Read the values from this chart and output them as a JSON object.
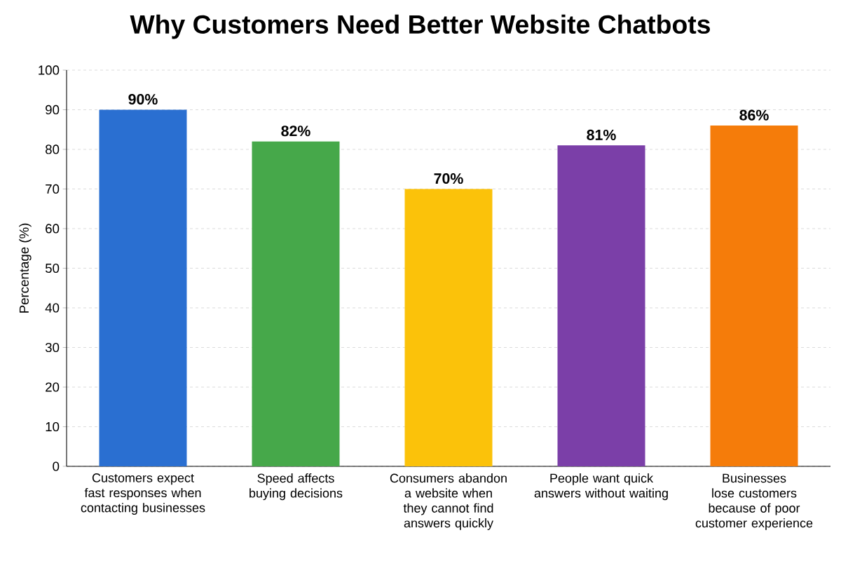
{
  "chart_data": {
    "type": "bar",
    "title": "Why Customers Need Better Website Chatbots",
    "ylabel": "Percentage (%)",
    "categories": [
      "Customers expect fast responses when contacting businesses",
      "Speed affects buying decisions",
      "Consumers abandon a website when they cannot find answers quickly",
      "People want quick answers without waiting",
      "Businesses lose customers because of poor customer experience"
    ],
    "values": [
      90,
      82,
      70,
      81,
      86
    ],
    "colors": [
      "#2a6fd1",
      "#46a84a",
      "#fbc20a",
      "#7b3fa8",
      "#f57c0a"
    ],
    "value_labels": [
      "90%",
      "82%",
      "70%",
      "81%",
      "86%"
    ],
    "ylim": [
      0,
      100
    ],
    "yticks": [
      0,
      10,
      20,
      30,
      40,
      50,
      60,
      70,
      80,
      90,
      100
    ],
    "grid": "y"
  }
}
